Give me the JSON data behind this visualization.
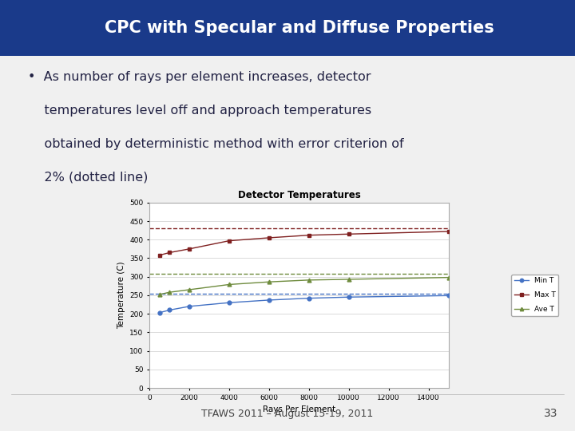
{
  "title": "CPC with Specular and Diffuse Properties",
  "chart_title": "Detector Temperatures",
  "xlabel": "Rays Per Element",
  "ylabel": "Temperature (C)",
  "slide_bg": "#f0f0f0",
  "header_bg_left": "#1a3a8a",
  "header_bg_right": "#2255bb",
  "header_text_color": "#ffffff",
  "bullet_text_line1": "•  As number of rays per element increases, detector",
  "bullet_text_line2": "    temperatures level off and approach temperatures",
  "bullet_text_line3": "    obtained by deterministic method with error criterion of",
  "bullet_text_line4": "    2% (dotted line)",
  "footer_text": "TFAWS 2011 – August 15-19, 2011",
  "page_number": "33",
  "x_data": [
    500,
    1000,
    2000,
    4000,
    6000,
    8000,
    10000,
    15000
  ],
  "min_t": [
    203,
    210,
    220,
    230,
    237,
    242,
    245,
    249
  ],
  "max_t": [
    358,
    365,
    375,
    397,
    405,
    412,
    415,
    422
  ],
  "ave_t": [
    252,
    258,
    265,
    279,
    286,
    291,
    293,
    298
  ],
  "min_t_dotted": 255,
  "max_t_dotted": 430,
  "ave_t_dotted": 307,
  "ylim": [
    0,
    500
  ],
  "xlim": [
    0,
    15000
  ],
  "yticks": [
    0,
    50,
    100,
    150,
    200,
    250,
    300,
    350,
    400,
    450,
    500
  ],
  "xticks": [
    0,
    2000,
    4000,
    6000,
    8000,
    10000,
    12000,
    14000
  ],
  "min_t_color": "#4472c4",
  "max_t_color": "#7f2020",
  "ave_t_color": "#6e8b3d",
  "chart_border_color": "#aaaaaa",
  "grid_color": "#cccccc",
  "text_color": "#222244",
  "footer_color": "#444444",
  "chart_bg": "#ffffff"
}
